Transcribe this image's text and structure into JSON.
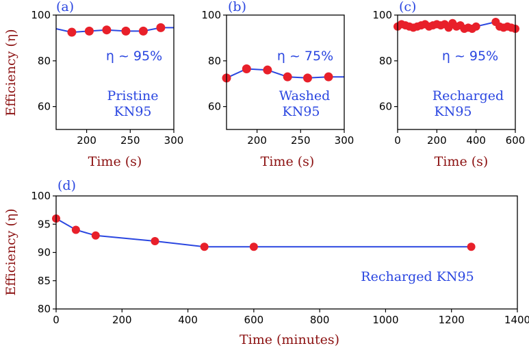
{
  "colors": {
    "line": "#2a46e0",
    "marker": "#e8202a",
    "label": "#8b1010",
    "annotation": "#2a46e0"
  },
  "chart_data": [
    {
      "panel": "(a)",
      "type": "line",
      "xlabel": "Time (s)",
      "ylabel": "Efficiency (η)",
      "xlim": [
        165,
        300
      ],
      "ylim": [
        50,
        100
      ],
      "xticks": [
        200,
        250,
        300
      ],
      "yticks": [
        60,
        80,
        100
      ],
      "line_x": [
        165,
        183,
        203,
        223,
        245,
        265,
        285,
        300
      ],
      "line_y": [
        94,
        92.5,
        93,
        93.5,
        93,
        93,
        94.5,
        94.5
      ],
      "points_x": [
        183,
        203,
        223,
        245,
        265,
        285
      ],
      "points_y": [
        92.5,
        93,
        93.5,
        93,
        93,
        94.5
      ],
      "efficiency_note": "η ~ 95%",
      "label_line1": "Pristine",
      "label_line2": "KN95"
    },
    {
      "panel": "(b)",
      "type": "line",
      "xlabel": "Time (s)",
      "ylabel": "",
      "xlim": [
        165,
        300
      ],
      "ylim": [
        50,
        100
      ],
      "xticks": [
        200,
        250,
        300
      ],
      "yticks": [
        60,
        80,
        100
      ],
      "line_x": [
        165,
        188,
        212,
        235,
        258,
        282,
        300
      ],
      "line_y": [
        72.5,
        76.5,
        76,
        73,
        72.5,
        73,
        73
      ],
      "points_x": [
        165,
        188,
        212,
        235,
        258,
        282
      ],
      "points_y": [
        72.5,
        76.5,
        76,
        73,
        72.5,
        73
      ],
      "efficiency_note": "η ~ 75%",
      "label_line1": "Washed",
      "label_line2": "KN95"
    },
    {
      "panel": "(c)",
      "type": "line",
      "xlabel": "Time (s)",
      "ylabel": "",
      "xlim": [
        0,
        600
      ],
      "ylim": [
        50,
        100
      ],
      "xticks": [
        0,
        200,
        400,
        600
      ],
      "yticks": [
        60,
        80,
        100
      ],
      "line_x": [
        0,
        20,
        40,
        60,
        80,
        100,
        120,
        140,
        160,
        180,
        200,
        220,
        240,
        260,
        280,
        300,
        320,
        340,
        360,
        380,
        400,
        500,
        520,
        540,
        560,
        580,
        600
      ],
      "line_y": [
        95,
        96,
        95.5,
        95,
        94.5,
        95,
        95.5,
        96,
        95,
        95.5,
        96,
        95.5,
        96,
        94.5,
        96.5,
        95,
        95.5,
        94,
        94.5,
        94,
        95,
        97,
        95,
        94.5,
        95,
        94.5,
        94
      ],
      "points_x": [
        0,
        20,
        40,
        60,
        80,
        100,
        120,
        140,
        160,
        180,
        200,
        220,
        240,
        260,
        280,
        300,
        320,
        340,
        360,
        380,
        400,
        500,
        520,
        540,
        560,
        580,
        600
      ],
      "points_y": [
        95,
        96,
        95.5,
        95,
        94.5,
        95,
        95.5,
        96,
        95,
        95.5,
        96,
        95.5,
        96,
        94.5,
        96.5,
        95,
        95.5,
        94,
        94.5,
        94,
        95,
        97,
        95,
        94.5,
        95,
        94.5,
        94
      ],
      "efficiency_note": "η ~ 95%",
      "label_line1": "Recharged",
      "label_line2": "KN95"
    },
    {
      "panel": "(d)",
      "type": "line",
      "xlabel": "Time (minutes)",
      "ylabel": "Efficiency (η)",
      "xlim": [
        0,
        1400
      ],
      "ylim": [
        80,
        100
      ],
      "xticks": [
        0,
        200,
        400,
        600,
        800,
        1000,
        1200,
        1400
      ],
      "yticks": [
        80,
        85,
        90,
        95,
        100
      ],
      "line_x": [
        0,
        60,
        120,
        300,
        450,
        600,
        1260
      ],
      "line_y": [
        96,
        94,
        93,
        92,
        91,
        91,
        91
      ],
      "points_x": [
        0,
        60,
        120,
        300,
        450,
        600,
        1260
      ],
      "points_y": [
        96,
        94,
        93,
        92,
        91,
        91,
        91
      ],
      "label": "Recharged  KN95"
    }
  ]
}
